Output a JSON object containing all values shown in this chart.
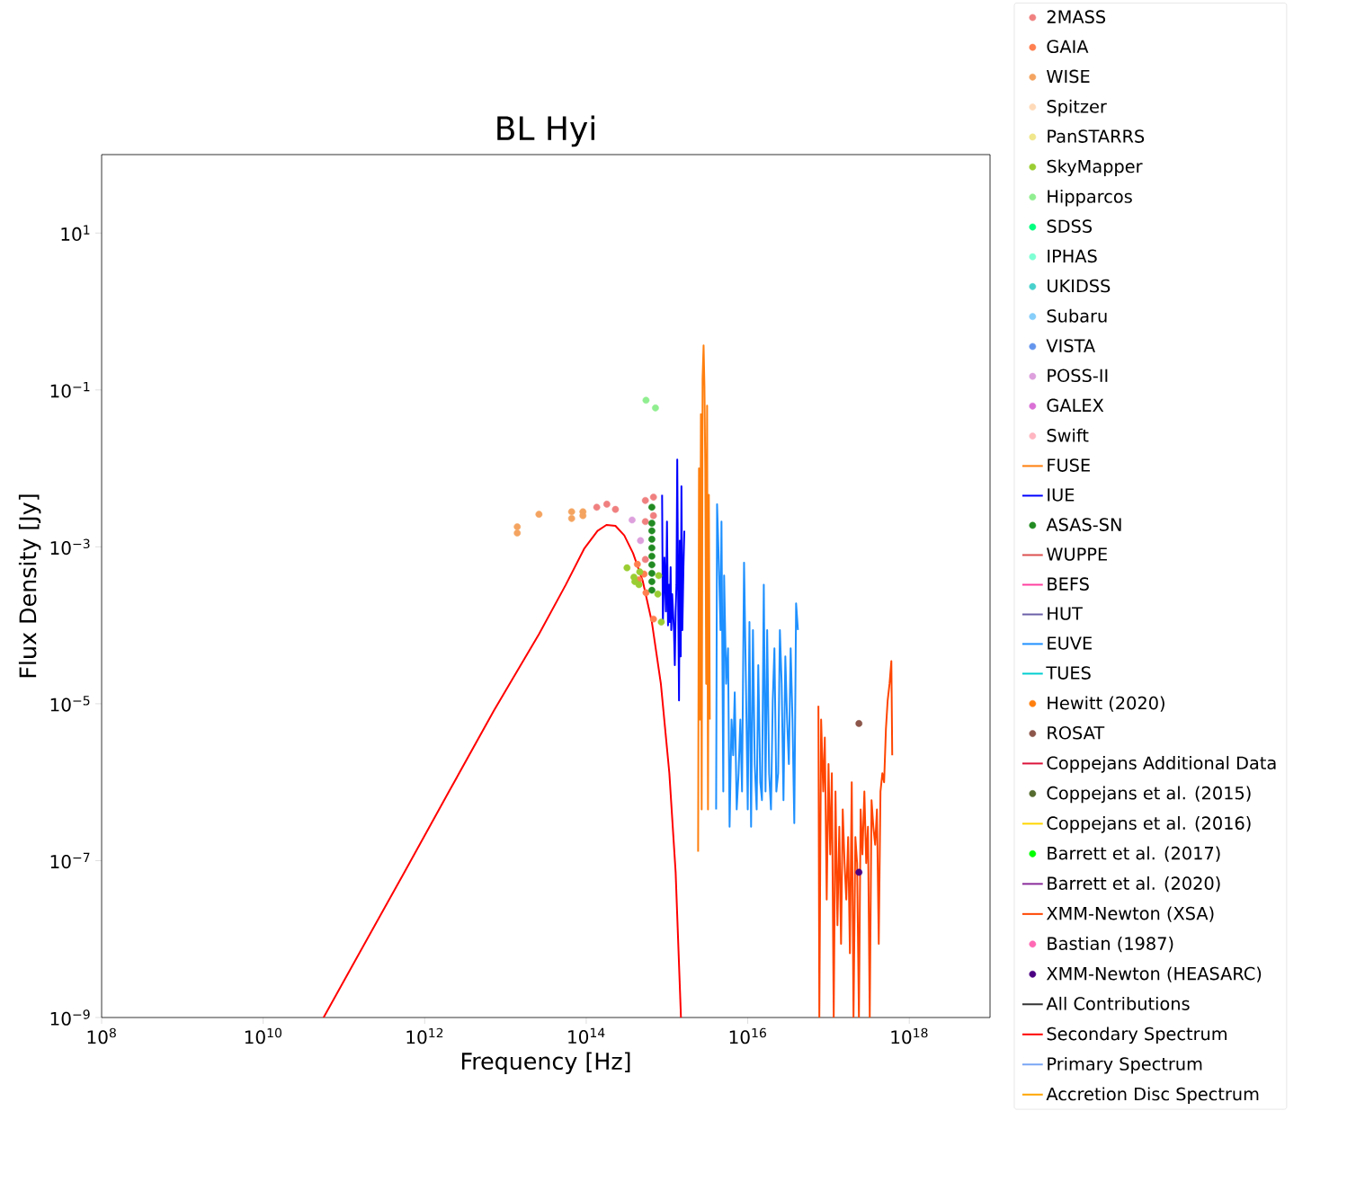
{
  "chart_data": {
    "type": "scatter",
    "title": "BL Hyi",
    "xlabel": "Frequency [Hz]",
    "ylabel": "Flux Density [Jy]",
    "log": "xy",
    "grid": false,
    "legend": "right",
    "marker": "circle",
    "xlim": [
      100000000.0,
      1e+19
    ],
    "ylim": [
      1e-09,
      100.0
    ],
    "xticks": [
      {
        "value": 100000000.0,
        "label": "10$^{8}$"
      },
      {
        "value": 10000000000.0,
        "label": "10$^{10}$"
      },
      {
        "value": 1000000000000.0,
        "label": "10$^{12}$"
      },
      {
        "value": 100000000000000.0,
        "label": "10$^{14}$"
      },
      {
        "value": 1e+16,
        "label": "10$^{16}$"
      },
      {
        "value": 1e+18,
        "label": "10$^{18}$"
      }
    ],
    "yticks": [
      {
        "value": 1e-09,
        "label": "10$^{−9}$"
      },
      {
        "value": 1e-07,
        "label": "10$^{−7}$"
      },
      {
        "value": 1e-05,
        "label": "10$^{−5}$"
      },
      {
        "value": 0.001,
        "label": "10$^{−3}$"
      },
      {
        "value": 0.1,
        "label": "10$^{−1}$"
      },
      {
        "value": 10,
        "label": "10$^{1}$"
      }
    ],
    "series": [
      {
        "name": "2MASS",
        "color": "#f08080",
        "x": [
          135000000000000.0,
          180000000000000.0,
          230000000000000.0,
          680000000000000.0,
          540000000000000.0,
          680000000000000.0,
          540000000000000.0,
          540000000000000.0
        ],
        "values": [
          0.0032,
          0.0035,
          0.003,
          0.0043,
          0.0039,
          0.0025,
          0.0021,
          0.00069
        ]
      },
      {
        "name": "GAIA",
        "color": "#ff7f50",
        "x": [
          430000000000000.0,
          520000000000000.0,
          450000000000000.0,
          550000000000000.0,
          680000000000000.0
        ],
        "values": [
          0.0006,
          0.00045,
          0.00038,
          0.00026,
          0.00012
        ]
      },
      {
        "name": "WISE",
        "color": "#f4a460",
        "x": [
          14000000000000.0,
          14000000000000.0,
          26000000000000.0,
          66000000000000.0,
          66000000000000.0,
          91000000000000.0,
          91000000000000.0
        ],
        "values": [
          0.0018,
          0.0015,
          0.0026,
          0.0028,
          0.0023,
          0.0028,
          0.0025
        ]
      },
      {
        "name": "Spitzer",
        "color": "#ffdab9"
      },
      {
        "name": "PanSTARRS",
        "color": "#f0e68c"
      },
      {
        "name": "SkyMapper",
        "color": "#9acd32",
        "x": [
          320000000000000.0,
          390000000000000.0,
          400000000000000.0,
          450000000000000.0,
          790000000000000.0,
          770000000000000.0,
          850000000000000.0,
          460000000000000.0
        ],
        "values": [
          0.00054,
          0.00041,
          0.00036,
          0.00033,
          0.00043,
          0.00025,
          0.00011,
          0.00048
        ]
      },
      {
        "name": "Hipparcos",
        "color": "#90ee90",
        "x": [
          550000000000000.0,
          720000000000000.0
        ],
        "values": [
          0.074,
          0.059
        ]
      },
      {
        "name": "SDSS",
        "color": "#00ff7f"
      },
      {
        "name": "IPHAS",
        "color": "#7fffd4"
      },
      {
        "name": "UKIDSS",
        "color": "#48d1cc"
      },
      {
        "name": "Subaru",
        "color": "#87cefa"
      },
      {
        "name": "VISTA",
        "color": "#6495ed"
      },
      {
        "name": "POSS-II",
        "color": "#dda0dd",
        "x": [
          370000000000000.0,
          470000000000000.0
        ],
        "values": [
          0.0022,
          0.0012
        ]
      },
      {
        "name": "GALEX",
        "color": "#da70d6"
      },
      {
        "name": "Swift",
        "color": "#ffb6c1"
      },
      {
        "name": "FUSE",
        "type": "line",
        "marker": "none",
        "color": "#ff7f0e",
        "x": [
          2430000000000000.0,
          2490000000000000.0,
          2560000000000000.0,
          2630000000000000.0,
          2690000000000000.0,
          2760000000000000.0,
          2840000000000000.0,
          2910000000000000.0,
          2980000000000000.0,
          3060000000000000.0,
          3140000000000000.0,
          3220000000000000.0,
          3300000000000000.0,
          3390000000000000.0
        ],
        "values": [
          1.3e-07,
          0.01,
          6.3e-06,
          0.049,
          4.5e-07,
          0.14,
          0.37,
          0.11,
          0.01,
          1.8e-05,
          0.063,
          4.5e-07,
          0.0046,
          6.3e-06
        ]
      },
      {
        "name": "IUE",
        "type": "line",
        "marker": "none",
        "color": "#0000ff",
        "x": [
          870000000000000.0,
          890000000000000.0,
          930000000000000.0,
          970000000000000.0,
          1000000000000000.0,
          1030000000000000.0,
          1060000000000000.0,
          1080000000000000.0,
          1110000000000000.0,
          1130000000000000.0,
          1160000000000000.0,
          1220000000000000.0,
          1250000000000000.0,
          1280000000000000.0,
          1310000000000000.0,
          1340000000000000.0,
          1380000000000000.0,
          1410000000000000.0,
          1440000000000000.0,
          1480000000000000.0,
          1510000000000000.0,
          1550000000000000.0,
          1600000000000000.0,
          1640000000000000.0
        ],
        "values": [
          0.0046,
          0.00011,
          0.00073,
          0.00015,
          0.0021,
          0.0001,
          0.00033,
          0.00011,
          0.00055,
          8.7e-05,
          0.00025,
          8.7e-05,
          3.1e-05,
          0.00015,
          0.00033,
          0.013,
          0.00015,
          1.1e-05,
          0.0012,
          4e-05,
          0.0059,
          8.7e-05,
          0.00055,
          0.0016
        ]
      },
      {
        "name": "ASAS-SN",
        "color": "#228b22",
        "x": [
          650000000000000.0,
          650000000000000.0,
          650000000000000.0,
          650000000000000.0,
          650000000000000.0,
          650000000000000.0,
          650000000000000.0,
          650000000000000.0,
          650000000000000.0,
          650000000000000.0
        ],
        "values": [
          0.0032,
          0.002,
          0.0016,
          0.00125,
          0.00097,
          0.00076,
          0.00059,
          0.00046,
          0.00036,
          0.00028
        ]
      },
      {
        "name": "WUPPE",
        "type": "line",
        "marker": "none",
        "color": "#dc5050"
      },
      {
        "name": "BEFS",
        "type": "line",
        "marker": "none",
        "color": "#ff40a0"
      },
      {
        "name": "HUT",
        "type": "line",
        "marker": "none",
        "color": "#6b5fa8"
      },
      {
        "name": "EUVE",
        "type": "line",
        "marker": "none",
        "color": "#1e90ff",
        "x": [
          4060000000000000.0,
          4170000000000000.0,
          4370000000000000.0,
          4600000000000000.0,
          4730000000000000.0,
          4980000000000000.0,
          5100000000000000.0,
          5400000000000000.0,
          5700000000000000.0,
          5960000000000000.0,
          6300000000000000.0,
          6600000000000000.0,
          6900000000000000.0,
          7300000000000000.0,
          7700000000000000.0,
          8100000000000000.0,
          8500000000000000.0,
          9000000000000000.0,
          9500000000000000.0,
          1e+16,
          1.05e+16,
          1.1e+16,
          1.16e+16,
          1.22e+16,
          1.29e+16,
          1.35e+16,
          1.43e+16,
          1.5e+16,
          1.58e+16,
          1.66e+16,
          1.74e+16,
          1.84e+16,
          1.94e+16,
          2.04e+16,
          2.14e+16,
          2.26e+16,
          2.38e+16,
          2.5e+16,
          2.63e+16,
          2.77e+16,
          2.92e+16,
          3.07e+16,
          3.23e+16,
          3.4e+16,
          3.58e+16,
          3.77e+16,
          3.97e+16,
          4.18e+16
        ],
        "values": [
          4.5e-07,
          0.0035,
          0.00073,
          8.7e-05,
          0.0021,
          7.6e-07,
          0.00043,
          1.8e-05,
          5.1e-05,
          2.7e-07,
          6.3e-06,
          2.2e-06,
          1.4e-05,
          4.5e-07,
          1.3e-06,
          6.3e-06,
          7.6e-07,
          0.00063,
          1.8e-05,
          4.5e-07,
          0.00011,
          2.7e-07,
          8.7e-05,
          1.7e-06,
          4.5e-07,
          3.1e-05,
          1e-06,
          5.9e-07,
          0.00033,
          7.6e-07,
          8.7e-05,
          1.3e-06,
          4.5e-07,
          1.1e-05,
          5.1e-05,
          7.6e-07,
          1.3e-06,
          8.7e-05,
          1.8e-05,
          5.9e-07,
          4e-05,
          6.3e-06,
          1.7e-06,
          5.1e-05,
          6.3e-06,
          3e-07,
          0.00019,
          8.7e-05
        ]
      },
      {
        "name": "TUES",
        "type": "line",
        "marker": "none",
        "color": "#00ced1"
      },
      {
        "name": "Hewitt (2020)",
        "color": "#ff7f0e"
      },
      {
        "name": "ROSAT",
        "color": "#8c564b",
        "x": [
          2.38e+17
        ],
        "values": [
          5.6e-06
        ]
      },
      {
        "name": "Coppejans Additional Data",
        "type": "line",
        "marker": "none",
        "color": "#dc143c"
      },
      {
        "name": "Coppejans et al. (2015)",
        "color": "#556b2f"
      },
      {
        "name": "Coppejans et al. (2016)",
        "type": "line",
        "marker": "none",
        "color": "#ffd700"
      },
      {
        "name": "Barrett et al. (2017)",
        "color": "#00ff00"
      },
      {
        "name": "Barrett et al. (2020)",
        "type": "line",
        "marker": "none",
        "color": "#8b2d9c"
      },
      {
        "name": "XMM-Newton (XSA)",
        "type": "line",
        "marker": "none",
        "color": "#ff4500",
        "x": [
          7.5e+16,
          7.7e+16,
          8.1e+16,
          8.6e+16,
          9e+16,
          9.5e+16,
          1e+17,
          1.05e+17,
          1.1e+17,
          1.16e+17,
          1.22e+17,
          1.29e+17,
          1.36e+17,
          1.43e+17,
          1.5e+17,
          1.58e+17,
          1.66e+17,
          1.75e+17,
          1.84e+17,
          1.94e+17,
          2.04e+17,
          2.15e+17,
          2.26e+17,
          2.38e+17,
          2.5e+17,
          2.63e+17,
          2.78e+17,
          2.93e+17,
          3.08e+17,
          3.24e+17,
          3.41e+17,
          3.59e+17,
          3.78e+17,
          3.98e+17,
          4.19e+17,
          4.4e+17,
          4.64e+17,
          4.88e+17,
          5.14e+17,
          5.4e+17,
          5.7e+17,
          6e+17,
          6.15e+17
        ],
        "values": [
          9.4e-06,
          1e-09,
          6.3e-06,
          7.6e-07,
          3.7e-06,
          3.2e-08,
          1.7e-06,
          1.2e-07,
          1.3e-06,
          1e-09,
          7.6e-07,
          1.5e-08,
          2.7e-07,
          8.7e-09,
          4.5e-07,
          9.3e-08,
          3.2e-08,
          2e-07,
          6.6e-09,
          1e-06,
          1e-09,
          2e-07,
          9.3e-08,
          1e-09,
          4.5e-07,
          1.2e-07,
          7.6e-07,
          9.3e-08,
          2.7e-07,
          1e-09,
          5.9e-07,
          2.7e-07,
          1.6e-07,
          4.5e-07,
          8.7e-09,
          7.6e-07,
          1.3e-06,
          1e-06,
          4.8e-06,
          1.1e-05,
          1.8e-05,
          3.5e-05,
          2.2e-06
        ]
      },
      {
        "name": "Bastian (1987)",
        "color": "#ff69b4"
      },
      {
        "name": "XMM-Newton (HEASARC)",
        "color": "#4b0082",
        "x": [
          2.38e+17
        ],
        "values": [
          7.1e-08
        ]
      },
      {
        "name": "All Contributions",
        "type": "line",
        "marker": "none",
        "color": "#333333"
      },
      {
        "name": "Secondary Spectrum",
        "type": "line",
        "marker": "none",
        "color": "#ff0000",
        "x": [
          56000000000.0,
          155000000000.0,
          560000000000.0,
          2000000000000.0,
          7200000000000.0,
          26000000000000.0,
          56000000000000.0,
          94000000000000.0,
          138000000000000.0,
          178000000000000.0,
          230000000000000.0,
          296000000000000.0,
          380000000000000.0,
          500000000000000.0,
          650000000000000.0,
          840000000000000.0,
          1070000000000000.0,
          1280000000000000.0,
          1490000000000000.0
        ],
        "values": [
          1e-09,
          6.6e-09,
          7.1e-08,
          7.6e-07,
          8.2e-06,
          7.7e-05,
          0.00033,
          0.00094,
          0.0016,
          0.0019,
          0.00185,
          0.0014,
          0.00083,
          0.00037,
          0.00011,
          1.8e-05,
          1.3e-06,
          7.1e-08,
          1e-09
        ]
      },
      {
        "name": "Primary Spectrum",
        "type": "line",
        "marker": "none",
        "color": "#7aa6f5"
      },
      {
        "name": "Accretion Disc Spectrum",
        "type": "line",
        "marker": "none",
        "color": "#ffa500"
      }
    ]
  }
}
